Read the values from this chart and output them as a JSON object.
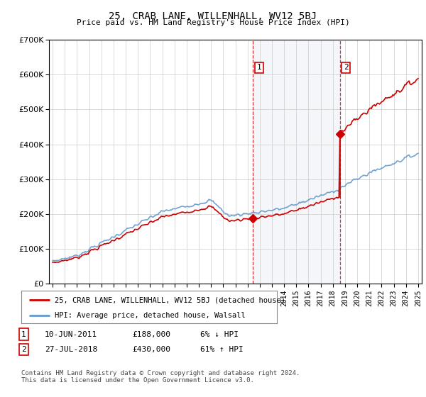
{
  "title": "25, CRAB LANE, WILLENHALL, WV12 5BJ",
  "subtitle": "Price paid vs. HM Land Registry's House Price Index (HPI)",
  "ylim": [
    0,
    700000
  ],
  "sale1_date": 2011.44,
  "sale1_price": 188000,
  "sale1_label": "1",
  "sale2_date": 2018.57,
  "sale2_price": 430000,
  "sale2_label": "2",
  "legend_line1": "25, CRAB LANE, WILLENHALL, WV12 5BJ (detached house)",
  "legend_line2": "HPI: Average price, detached house, Walsall",
  "footnote": "Contains HM Land Registry data © Crown copyright and database right 2024.\nThis data is licensed under the Open Government Licence v3.0.",
  "line_color_sale": "#cc0000",
  "line_color_hpi": "#6699cc",
  "plot_bg": "#ffffff",
  "vline_color": "#cc0000",
  "dot_color_sale": "#cc0000",
  "grid_color": "#cccccc",
  "shade_color": "#ddeeff"
}
